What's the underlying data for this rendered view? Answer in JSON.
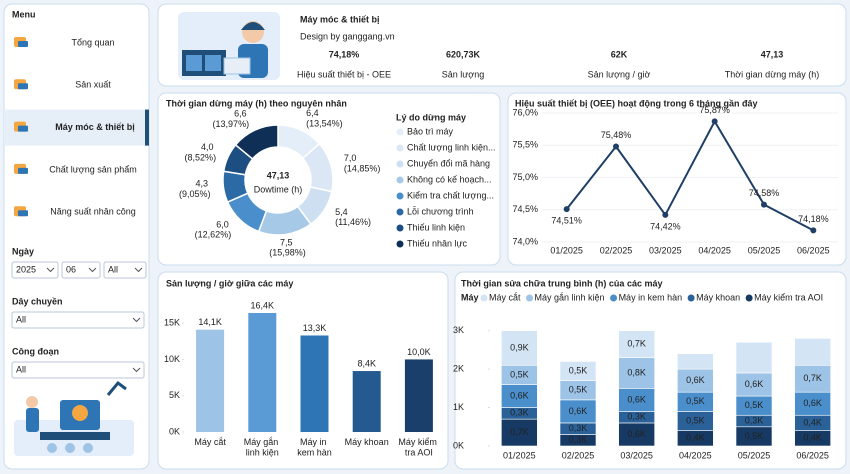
{
  "sidebar": {
    "menu_title": "Menu",
    "items": [
      "Tổng quan",
      "Sản xuất",
      "Máy móc & thiết bị",
      "Chất lượng sản phẩm",
      "Năng suất nhân công"
    ],
    "filters": [
      {
        "label": "Ngày",
        "options": [
          "2025",
          "06",
          "All"
        ]
      },
      {
        "label": "Dây chuyền",
        "options": [
          "All"
        ]
      },
      {
        "label": "Công đoạn",
        "options": [
          "All"
        ]
      }
    ]
  },
  "header": {
    "title": "Máy móc & thiết bị",
    "subtitle": "Design by ganggang.vn"
  },
  "kpis": [
    {
      "value": "74,18%",
      "label": "Hiệu suất thiết bị - OEE"
    },
    {
      "value": "620,73K",
      "label": "Sản lượng"
    },
    {
      "value": "62K",
      "label": "Sản lượng / giờ"
    },
    {
      "value": "47,13",
      "label": "Thời gian dừng máy (h)"
    }
  ],
  "chart_data": [
    {
      "type": "donut",
      "title": "Thời gian dừng máy (h) theo nguyên nhân",
      "center_label": "47,13",
      "center_subtitle": "Dowtime (h)",
      "legend_title": "Lý do dừng máy",
      "categories": [
        "Bảo trì máy",
        "Chất lượng linh kiện...",
        "Chuyển đổi mã hàng",
        "Không có kế hoạch...",
        "Kiểm tra chất lượng...",
        "Lỗi chương trình",
        "Thiếu linh kiện",
        "Thiếu nhân lực"
      ],
      "values": [
        6.4,
        7.0,
        5.4,
        7.5,
        6.0,
        4.3,
        4.0,
        6.6
      ],
      "value_labels": [
        "6,4 (13,54%)",
        "7,0 (14,85%)",
        "5,4 (11,46%)",
        "7,5 (15,98%)",
        "6,0 (12,62%)",
        "4,3 (9,05%)",
        "4,0 (8,52%)",
        "6,6 (13,97%)"
      ],
      "colors": [
        "#e4eef8",
        "#dbe7f4",
        "#cddff1",
        "#a7c9e8",
        "#4a8fcb",
        "#2c6aa6",
        "#1c4e82",
        "#0f2f57"
      ]
    },
    {
      "type": "line",
      "title": "Hiệu suất thiết bị (OEE) hoạt động trong 6 tháng gần đây",
      "categories": [
        "01/2025",
        "02/2025",
        "03/2025",
        "04/2025",
        "05/2025",
        "06/2025"
      ],
      "values": [
        74.51,
        75.48,
        74.42,
        75.87,
        74.58,
        74.18
      ],
      "value_labels": [
        "74,51%",
        "75,48%",
        "74,42%",
        "75,87%",
        "74,58%",
        "74,18%"
      ],
      "color": "#1f3f66",
      "ylim": [
        74,
        76
      ],
      "yticks": [
        {
          "value": 74,
          "label": "74,0%"
        },
        {
          "value": 74.5,
          "label": "74,5%"
        },
        {
          "value": 75,
          "label": "75,0%"
        },
        {
          "value": 75.5,
          "label": "75,5%"
        },
        {
          "value": 76,
          "label": "76,0%"
        }
      ]
    },
    {
      "type": "bar",
      "title": "Sản lượng / giờ giữa các máy",
      "categories": [
        "Máy cắt",
        "Máy gắn linh kiện",
        "Máy in kem hàn",
        "Máy khoan",
        "Máy kiểm tra AOI"
      ],
      "values": [
        14100,
        16400,
        13300,
        8400,
        10000
      ],
      "value_labels": [
        "14,1K",
        "16,4K",
        "13,3K",
        "8,4K",
        "10,0K"
      ],
      "colors": [
        "#9dc3e6",
        "#5b9bd5",
        "#2e75b6",
        "#245a90",
        "#1a3f6b"
      ],
      "ylim": [
        0,
        17500
      ],
      "yticks": [
        {
          "value": 0,
          "label": "0K"
        },
        {
          "value": 5000,
          "label": "5K"
        },
        {
          "value": 10000,
          "label": "10K"
        },
        {
          "value": 15000,
          "label": "15K"
        }
      ]
    },
    {
      "type": "stacked_bar",
      "title": "Thời gian sửa chữa trung bình (h) của các máy",
      "legend_title": "Máy",
      "categories": [
        "01/2025",
        "02/2025",
        "03/2025",
        "04/2025",
        "05/2025",
        "06/2025"
      ],
      "series": [
        {
          "name": "Máy cắt",
          "color": "#d3e4f5",
          "values": [
            0.9,
            0.5,
            0.7,
            0.4,
            0.8,
            0.7
          ],
          "value_labels": [
            "0,9K",
            "0,5K",
            "0,7K",
            null,
            null,
            null
          ]
        },
        {
          "name": "Máy gắn linh kiện",
          "color": "#9dc3e6",
          "values": [
            0.5,
            0.5,
            0.8,
            0.6,
            0.6,
            0.7
          ],
          "value_labels": [
            "0,5K",
            "0,5K",
            "0,8K",
            "0,6K",
            "0,6K",
            "0,7K"
          ]
        },
        {
          "name": "Máy in kem hàn",
          "color": "#4a8fcb",
          "values": [
            0.6,
            0.6,
            0.6,
            0.5,
            0.5,
            0.6
          ],
          "value_labels": [
            "0,6K",
            "0,6K",
            "0,6K",
            "0,5K",
            "0,5K",
            "0,6K"
          ]
        },
        {
          "name": "Máy khoan",
          "color": "#2a6199",
          "values": [
            0.3,
            0.3,
            0.3,
            0.5,
            0.3,
            0.4
          ],
          "value_labels": [
            "0,3K",
            "0,3K",
            "0,3K",
            "0,5K",
            "0,3K",
            "0,4K"
          ]
        },
        {
          "name": "Máy kiểm tra AOI",
          "color": "#163a63",
          "values": [
            0.7,
            0.3,
            0.6,
            0.4,
            0.5,
            0.4
          ],
          "value_labels": [
            "0,7K",
            "0,3K",
            "0,6K",
            "0,4K",
            "0,5K",
            "0,4K"
          ]
        }
      ],
      "ylim": [
        0,
        3.2
      ],
      "yticks": [
        {
          "value": 0,
          "label": "0K"
        },
        {
          "value": 1,
          "label": "1K"
        },
        {
          "value": 2,
          "label": "2K"
        },
        {
          "value": 3,
          "label": "3K"
        }
      ]
    }
  ]
}
